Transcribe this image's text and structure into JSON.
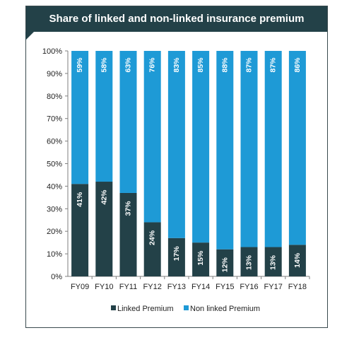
{
  "chart_data": {
    "type": "bar",
    "stacked": true,
    "title": "Share of linked and non-linked insurance premium",
    "categories": [
      "FY09",
      "FY10",
      "FY11",
      "FY12",
      "FY13",
      "FY14",
      "FY15",
      "FY16",
      "FY17",
      "FY18"
    ],
    "series": [
      {
        "name": "Linked Premium",
        "color": "#234148",
        "values": [
          41,
          42,
          37,
          24,
          17,
          15,
          12,
          13,
          13,
          14
        ],
        "labels": [
          "41%",
          "42%",
          "37%",
          "24%",
          "17%",
          "15%",
          "12%",
          "13%",
          "13%",
          "14%"
        ]
      },
      {
        "name": "Non linked Premium",
        "color": "#1e9ad6",
        "values": [
          59,
          58,
          63,
          76,
          83,
          85,
          88,
          87,
          87,
          86
        ],
        "labels": [
          "59%",
          "58%",
          "63%",
          "76%",
          "83%",
          "85%",
          "88%",
          "87%",
          "87%",
          "86%"
        ]
      }
    ],
    "yticks": [
      "0%",
      "10%",
      "20%",
      "30%",
      "40%",
      "50%",
      "60%",
      "70%",
      "80%",
      "90%",
      "100%"
    ],
    "ylim": [
      0,
      100
    ],
    "legend_position": "bottom",
    "grid": false
  }
}
